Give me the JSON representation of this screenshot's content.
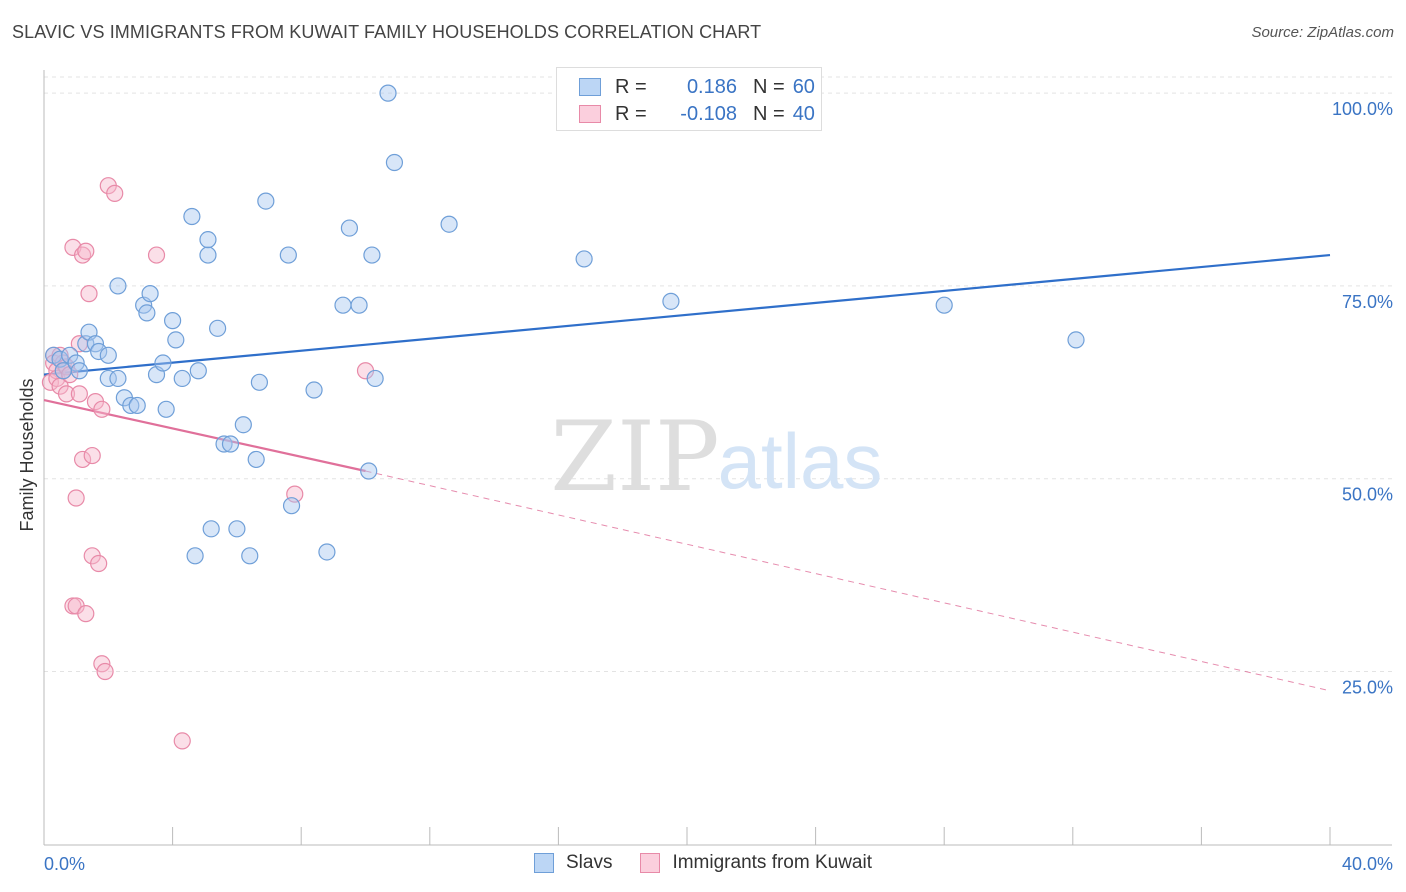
{
  "title": "SLAVIC VS IMMIGRANTS FROM KUWAIT FAMILY HOUSEHOLDS CORRELATION CHART",
  "source": "Source: ZipAtlas.com",
  "watermark": {
    "zip": "ZIP",
    "atlas": "atlas"
  },
  "colors": {
    "slavs_fill": "#a8c8f0",
    "slavs_stroke": "#6f9fd8",
    "slavs_line": "#2f6fca",
    "kuwait_fill": "#f6b8cc",
    "kuwait_stroke": "#e88aa8",
    "kuwait_line": "#e0709a",
    "axis_text": "#3a74c4",
    "grid": "#e3e3e3"
  },
  "legend": {
    "rows": [
      {
        "r_label": "R =",
        "r_value": "0.186",
        "n_label": "N =",
        "n_value": "60"
      },
      {
        "r_label": "R =",
        "r_value": "-0.108",
        "n_label": "N =",
        "n_value": "40"
      }
    ]
  },
  "chart_data": {
    "type": "scatter",
    "title": "SLAVIC VS IMMIGRANTS FROM KUWAIT FAMILY HOUSEHOLDS CORRELATION CHART",
    "xlabel": "",
    "ylabel": "Family Households",
    "xlim": [
      0,
      40
    ],
    "ylim": [
      2.5,
      103
    ],
    "x_tick_labels": [
      "0.0%",
      "40.0%"
    ],
    "y_ticks": [
      25,
      50,
      75,
      100
    ],
    "y_tick_labels": [
      "25.0%",
      "50.0%",
      "75.0%",
      "100.0%"
    ],
    "grid": true,
    "series": [
      {
        "name": "Slavs",
        "R": 0.186,
        "N": 60,
        "trend": {
          "x0": 0,
          "y0": 63.5,
          "x1": 40,
          "y1": 79.0
        },
        "points": [
          [
            0.3,
            66
          ],
          [
            0.5,
            65.5
          ],
          [
            0.8,
            66
          ],
          [
            0.6,
            64
          ],
          [
            1.0,
            65
          ],
          [
            1.1,
            64
          ],
          [
            1.3,
            67.5
          ],
          [
            1.4,
            69
          ],
          [
            1.6,
            67.5
          ],
          [
            1.7,
            66.5
          ],
          [
            2.0,
            66
          ],
          [
            2.0,
            63
          ],
          [
            2.3,
            63
          ],
          [
            2.3,
            75
          ],
          [
            2.5,
            60.5
          ],
          [
            2.7,
            59.5
          ],
          [
            2.9,
            59.5
          ],
          [
            3.1,
            72.5
          ],
          [
            3.2,
            71.5
          ],
          [
            3.3,
            74
          ],
          [
            3.5,
            63.5
          ],
          [
            3.7,
            65
          ],
          [
            3.8,
            59
          ],
          [
            4.0,
            70.5
          ],
          [
            4.1,
            68
          ],
          [
            4.3,
            63
          ],
          [
            4.6,
            84
          ],
          [
            4.7,
            40
          ],
          [
            4.8,
            64
          ],
          [
            5.1,
            79
          ],
          [
            5.1,
            81
          ],
          [
            5.2,
            43.5
          ],
          [
            5.4,
            69.5
          ],
          [
            5.6,
            54.5
          ],
          [
            5.8,
            54.5
          ],
          [
            6.0,
            43.5
          ],
          [
            6.2,
            57
          ],
          [
            6.4,
            40
          ],
          [
            6.6,
            52.5
          ],
          [
            6.7,
            62.5
          ],
          [
            6.9,
            86
          ],
          [
            7.6,
            79
          ],
          [
            7.7,
            46.5
          ],
          [
            8.4,
            61.5
          ],
          [
            8.8,
            40.5
          ],
          [
            9.3,
            72.5
          ],
          [
            9.5,
            82.5
          ],
          [
            9.8,
            72.5
          ],
          [
            10.1,
            51
          ],
          [
            10.2,
            79
          ],
          [
            10.3,
            63
          ],
          [
            10.7,
            100
          ],
          [
            10.9,
            91
          ],
          [
            12.6,
            83
          ],
          [
            16.8,
            78.5
          ],
          [
            19.5,
            73
          ],
          [
            28.0,
            72.5
          ],
          [
            32.1,
            68
          ]
        ]
      },
      {
        "name": "Immigrants from Kuwait",
        "R": -0.108,
        "N": 40,
        "trend": {
          "x0": 0,
          "y0": 60.2,
          "x1": 10,
          "y1": 51.0
        },
        "trend_extended": {
          "x0": 10,
          "y0": 51.0,
          "x1": 40,
          "y1": 22.5
        },
        "points": [
          [
            0.2,
            62.5
          ],
          [
            0.3,
            66
          ],
          [
            0.3,
            65
          ],
          [
            0.4,
            64
          ],
          [
            0.4,
            63
          ],
          [
            0.5,
            62
          ],
          [
            0.5,
            66
          ],
          [
            0.6,
            65
          ],
          [
            0.6,
            64
          ],
          [
            0.7,
            61
          ],
          [
            0.7,
            64.5
          ],
          [
            0.8,
            63.5
          ],
          [
            0.9,
            80
          ],
          [
            0.9,
            33.5
          ],
          [
            1.0,
            33.5
          ],
          [
            1.0,
            47.5
          ],
          [
            1.1,
            67.5
          ],
          [
            1.1,
            61
          ],
          [
            1.2,
            52.5
          ],
          [
            1.2,
            79
          ],
          [
            1.3,
            79.5
          ],
          [
            1.3,
            32.5
          ],
          [
            1.4,
            74
          ],
          [
            1.5,
            40
          ],
          [
            1.5,
            53
          ],
          [
            1.6,
            60
          ],
          [
            1.7,
            39
          ],
          [
            1.8,
            26
          ],
          [
            1.8,
            59
          ],
          [
            1.9,
            25
          ],
          [
            2.0,
            88
          ],
          [
            2.2,
            87
          ],
          [
            3.5,
            79
          ],
          [
            4.3,
            16
          ],
          [
            7.8,
            48
          ],
          [
            10.0,
            64
          ]
        ]
      }
    ]
  },
  "bottom_legend": [
    {
      "label": "Slavs"
    },
    {
      "label": "Immigrants from Kuwait"
    }
  ]
}
